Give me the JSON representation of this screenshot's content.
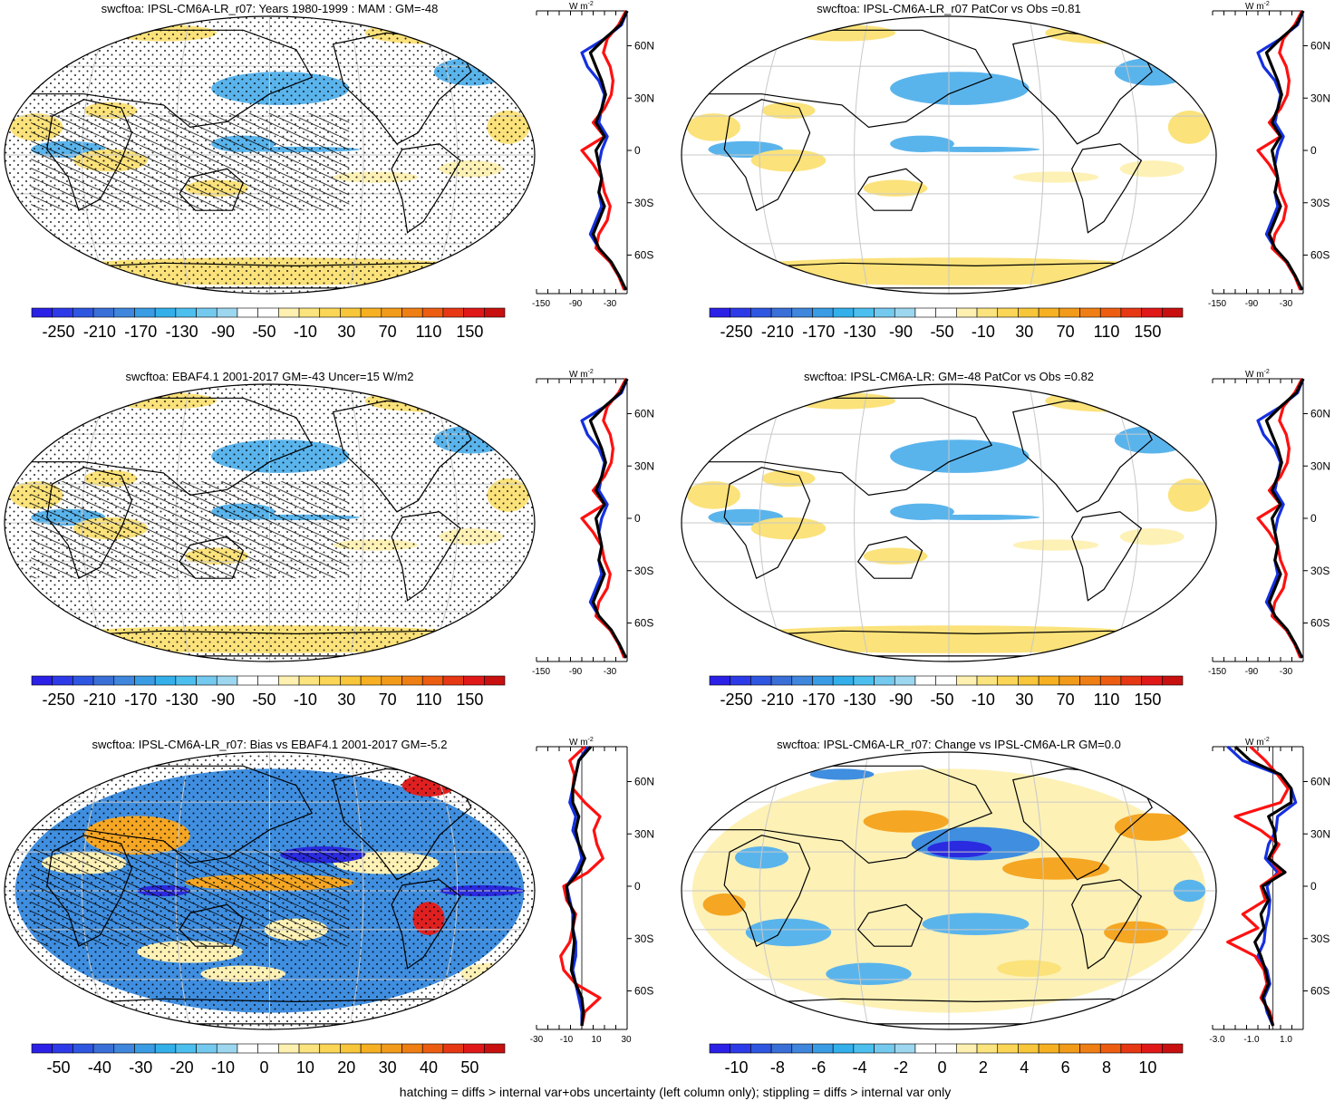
{
  "footer_note": "hatching = diffs > internal var+obs uncertainty (left column only); stippling = diffs > internal var only",
  "colors": {
    "blue_dark": "#2a2ae0",
    "blue": "#3f8ee0",
    "blue_light": "#5ab4ec",
    "yellow": "#fbe27a",
    "yellow_light": "#fdf1b6",
    "orange": "#f5a623",
    "red": "#e02020",
    "land_line": "#000000",
    "grid": "#c8c8c8",
    "line_model": "#ff1010",
    "line_obs": "#1530e0",
    "line_ref": "#000000"
  },
  "colorbar_palette": [
    "#2b20e6",
    "#2c3ae8",
    "#2f56e0",
    "#3a6fd8",
    "#3f86dc",
    "#3a9ce4",
    "#33b0ea",
    "#4cbfef",
    "#74c9ee",
    "#9dd6ef",
    "#ffffff",
    "#ffffff",
    "#fdf0b0",
    "#fbe37e",
    "#fbd656",
    "#f8c63a",
    "#f6b022",
    "#f29b1a",
    "#ef7f14",
    "#ec5d12",
    "#e63814",
    "#e01818",
    "#c81010"
  ],
  "panels": [
    {
      "title": "swcftoa: IPSL-CM6A-LR_r07: Years 1980-1999 : MAM : GM=-48",
      "pattern": "clim",
      "hatch": true,
      "stipple": true,
      "colorbar_labels": [
        "-250",
        "-210",
        "-170",
        "-130",
        "-90",
        "-50",
        "-10",
        "30",
        "70",
        "110",
        "150"
      ],
      "profile": {
        "unit": "W m",
        "unit_sup": "-2",
        "lat_labels": [
          "60N",
          "30N",
          "0",
          "30S",
          "60S"
        ],
        "x_labels": [
          "-150",
          "-90",
          "-30"
        ],
        "xlim": [
          -170,
          -10
        ],
        "lats": [
          80,
          72,
          64,
          56,
          48,
          40,
          32,
          24,
          16,
          8,
          0,
          -8,
          -16,
          -24,
          -32,
          -40,
          -48,
          -56,
          -64,
          -72,
          -80
        ],
        "red": [
          -12,
          -25,
          -45,
          -52,
          -40,
          -35,
          -38,
          -50,
          -70,
          -50,
          -90,
          -70,
          -55,
          -50,
          -40,
          -45,
          -60,
          -65,
          -40,
          -25,
          -15
        ],
        "blue": [
          -10,
          -20,
          -50,
          -90,
          -80,
          -60,
          -50,
          -55,
          -60,
          -45,
          -55,
          -60,
          -55,
          -60,
          -55,
          -65,
          -75,
          -60,
          -40,
          -25,
          -12
        ],
        "black": [
          -10,
          -22,
          -50,
          -75,
          -65,
          -55,
          -48,
          -55,
          -65,
          -50,
          -65,
          -60,
          -55,
          -60,
          -50,
          -60,
          -70,
          -60,
          -38,
          -24,
          -12
        ]
      }
    },
    {
      "title": "swcftoa: IPSL-CM6A-LR_r07 PatCor vs Obs =0.81",
      "pattern": "clim",
      "hatch": false,
      "stipple": false,
      "colorbar_labels": [
        "-250",
        "-210",
        "-170",
        "-130",
        "-90",
        "-50",
        "-10",
        "30",
        "70",
        "110",
        "150"
      ],
      "profile": {
        "unit": "W m",
        "unit_sup": "-2",
        "lat_labels": [
          "60N",
          "30N",
          "0",
          "30S",
          "60S"
        ],
        "x_labels": [
          "-150",
          "-90",
          "-30"
        ],
        "xlim": [
          -170,
          -10
        ],
        "lats": [
          80,
          72,
          64,
          56,
          48,
          40,
          32,
          24,
          16,
          8,
          0,
          -8,
          -16,
          -24,
          -32,
          -40,
          -48,
          -56,
          -64,
          -72,
          -80
        ],
        "red": [
          -12,
          -25,
          -45,
          -52,
          -40,
          -35,
          -38,
          -50,
          -70,
          -50,
          -90,
          -70,
          -55,
          -50,
          -40,
          -45,
          -60,
          -65,
          -40,
          -25,
          -15
        ],
        "blue": [
          -10,
          -20,
          -50,
          -90,
          -80,
          -60,
          -50,
          -55,
          -60,
          -45,
          -55,
          -60,
          -55,
          -60,
          -55,
          -65,
          -75,
          -60,
          -40,
          -25,
          -12
        ],
        "black": [
          -10,
          -22,
          -50,
          -75,
          -65,
          -55,
          -48,
          -55,
          -65,
          -50,
          -65,
          -60,
          -55,
          -60,
          -50,
          -60,
          -70,
          -60,
          -38,
          -24,
          -12
        ]
      }
    },
    {
      "title": "swcftoa: EBAF4.1 2001-2017 GM=-43 Uncer=15 W/m2",
      "pattern": "clim",
      "hatch": true,
      "stipple": true,
      "colorbar_labels": [
        "-250",
        "-210",
        "-170",
        "-130",
        "-90",
        "-50",
        "-10",
        "30",
        "70",
        "110",
        "150"
      ],
      "profile": {
        "unit": "W m",
        "unit_sup": "-2",
        "lat_labels": [
          "60N",
          "30N",
          "0",
          "30S",
          "60S"
        ],
        "x_labels": [
          "-150",
          "-90",
          "-30"
        ],
        "xlim": [
          -170,
          -10
        ],
        "lats": [
          80,
          72,
          64,
          56,
          48,
          40,
          32,
          24,
          16,
          8,
          0,
          -8,
          -16,
          -24,
          -32,
          -40,
          -48,
          -56,
          -64,
          -72,
          -80
        ],
        "red": [
          -12,
          -25,
          -45,
          -52,
          -40,
          -35,
          -38,
          -50,
          -70,
          -50,
          -90,
          -70,
          -55,
          -50,
          -40,
          -45,
          -60,
          -65,
          -40,
          -25,
          -15
        ],
        "blue": [
          -10,
          -20,
          -50,
          -90,
          -80,
          -60,
          -50,
          -55,
          -60,
          -45,
          -55,
          -60,
          -55,
          -60,
          -55,
          -65,
          -75,
          -60,
          -40,
          -25,
          -12
        ],
        "black": [
          -10,
          -22,
          -50,
          -75,
          -65,
          -55,
          -48,
          -55,
          -65,
          -50,
          -65,
          -60,
          -55,
          -60,
          -50,
          -60,
          -70,
          -60,
          -38,
          -24,
          -12
        ]
      }
    },
    {
      "title": "swcftoa: IPSL-CM6A-LR: GM=-48 PatCor vs Obs =0.82",
      "pattern": "clim",
      "hatch": false,
      "stipple": false,
      "colorbar_labels": [
        "-250",
        "-210",
        "-170",
        "-130",
        "-90",
        "-50",
        "-10",
        "30",
        "70",
        "110",
        "150"
      ],
      "profile": {
        "unit": "W m",
        "unit_sup": "-2",
        "lat_labels": [
          "60N",
          "30N",
          "0",
          "30S",
          "60S"
        ],
        "x_labels": [
          "-150",
          "-90",
          "-30"
        ],
        "xlim": [
          -170,
          -10
        ],
        "lats": [
          80,
          72,
          64,
          56,
          48,
          40,
          32,
          24,
          16,
          8,
          0,
          -8,
          -16,
          -24,
          -32,
          -40,
          -48,
          -56,
          -64,
          -72,
          -80
        ],
        "red": [
          -12,
          -25,
          -45,
          -52,
          -40,
          -35,
          -38,
          -50,
          -70,
          -50,
          -90,
          -70,
          -55,
          -50,
          -40,
          -45,
          -60,
          -65,
          -40,
          -25,
          -15
        ],
        "blue": [
          -10,
          -20,
          -50,
          -90,
          -80,
          -60,
          -50,
          -55,
          -60,
          -45,
          -55,
          -60,
          -55,
          -60,
          -55,
          -65,
          -75,
          -60,
          -40,
          -25,
          -12
        ],
        "black": [
          -10,
          -22,
          -50,
          -75,
          -65,
          -55,
          -48,
          -55,
          -65,
          -50,
          -65,
          -60,
          -55,
          -60,
          -50,
          -60,
          -70,
          -60,
          -38,
          -24,
          -12
        ]
      }
    },
    {
      "title": "swcftoa: IPSL-CM6A-LR_r07: Bias vs EBAF4.1 2001-2017 GM=-5.2",
      "pattern": "bias",
      "hatch": true,
      "stipple": true,
      "colorbar_labels": [
        "-50",
        "-40",
        "-30",
        "-20",
        "-10",
        "0",
        "10",
        "20",
        "30",
        "40",
        "50"
      ],
      "profile": {
        "unit": "W m",
        "unit_sup": "-2",
        "lat_labels": [
          "60N",
          "30N",
          "0",
          "30S",
          "60S"
        ],
        "x_labels": [
          "-30",
          "-10",
          "10",
          "30"
        ],
        "xlim": [
          -30,
          30
        ],
        "lats": [
          80,
          72,
          64,
          56,
          48,
          40,
          32,
          24,
          16,
          8,
          0,
          -8,
          -16,
          -24,
          -32,
          -40,
          -48,
          -56,
          -64,
          -72,
          -80
        ],
        "red": [
          2,
          -8,
          -5,
          -6,
          2,
          12,
          8,
          10,
          14,
          4,
          -12,
          -10,
          -4,
          -6,
          -8,
          -14,
          -12,
          -4,
          12,
          2,
          0
        ],
        "blue": [
          4,
          -2,
          -4,
          -6,
          -8,
          -4,
          -6,
          -2,
          0,
          -4,
          -10,
          -8,
          -6,
          -6,
          -4,
          -4,
          -6,
          -4,
          -2,
          0,
          0
        ],
        "black": [
          6,
          -2,
          -4,
          -6,
          -6,
          -2,
          -4,
          -2,
          2,
          -2,
          -10,
          -9,
          -5,
          -6,
          -5,
          -6,
          -7,
          -4,
          0,
          1,
          0
        ]
      }
    },
    {
      "title": "swcftoa: IPSL-CM6A-LR_r07: Change vs IPSL-CM6A-LR GM=0.0",
      "pattern": "change",
      "hatch": false,
      "stipple": false,
      "colorbar_labels": [
        "-10",
        "-8",
        "-6",
        "-4",
        "-2",
        "0",
        "2",
        "4",
        "6",
        "8",
        "10"
      ],
      "profile": {
        "unit": "W m",
        "unit_sup": "-2",
        "lat_labels": [
          "60N",
          "30N",
          "0",
          "30S",
          "60S"
        ],
        "x_labels": [
          "-3.0",
          "-1.0",
          "1.0"
        ],
        "xlim": [
          -4,
          2
        ],
        "lats": [
          80,
          72,
          64,
          56,
          48,
          40,
          32,
          24,
          16,
          8,
          0,
          -8,
          -16,
          -24,
          -32,
          -40,
          -48,
          -56,
          -64,
          -72,
          -80
        ],
        "red": [
          -1.5,
          -0.5,
          0.3,
          1.0,
          0.5,
          -2.5,
          -0.8,
          0.4,
          -0.2,
          0.5,
          -0.8,
          -0.5,
          -2.0,
          -1.0,
          -3.0,
          -1.2,
          -0.6,
          -0.4,
          -0.8,
          -0.2,
          0
        ],
        "blue": [
          -3.0,
          -2.0,
          0.4,
          1.2,
          1.5,
          0.3,
          0.2,
          -0.3,
          -0.5,
          0.3,
          -0.4,
          -0.2,
          -0.3,
          -0.5,
          -0.6,
          -1.0,
          -0.4,
          -0.2,
          -0.6,
          -0.4,
          0
        ],
        "black": [
          -2.5,
          -1.5,
          0.5,
          1.2,
          1.2,
          -0.3,
          0.1,
          0.2,
          -0.3,
          0.8,
          -0.7,
          -0.3,
          -0.8,
          -0.6,
          -1.2,
          -0.8,
          -0.5,
          -0.3,
          -0.7,
          -0.3,
          0
        ]
      }
    }
  ]
}
